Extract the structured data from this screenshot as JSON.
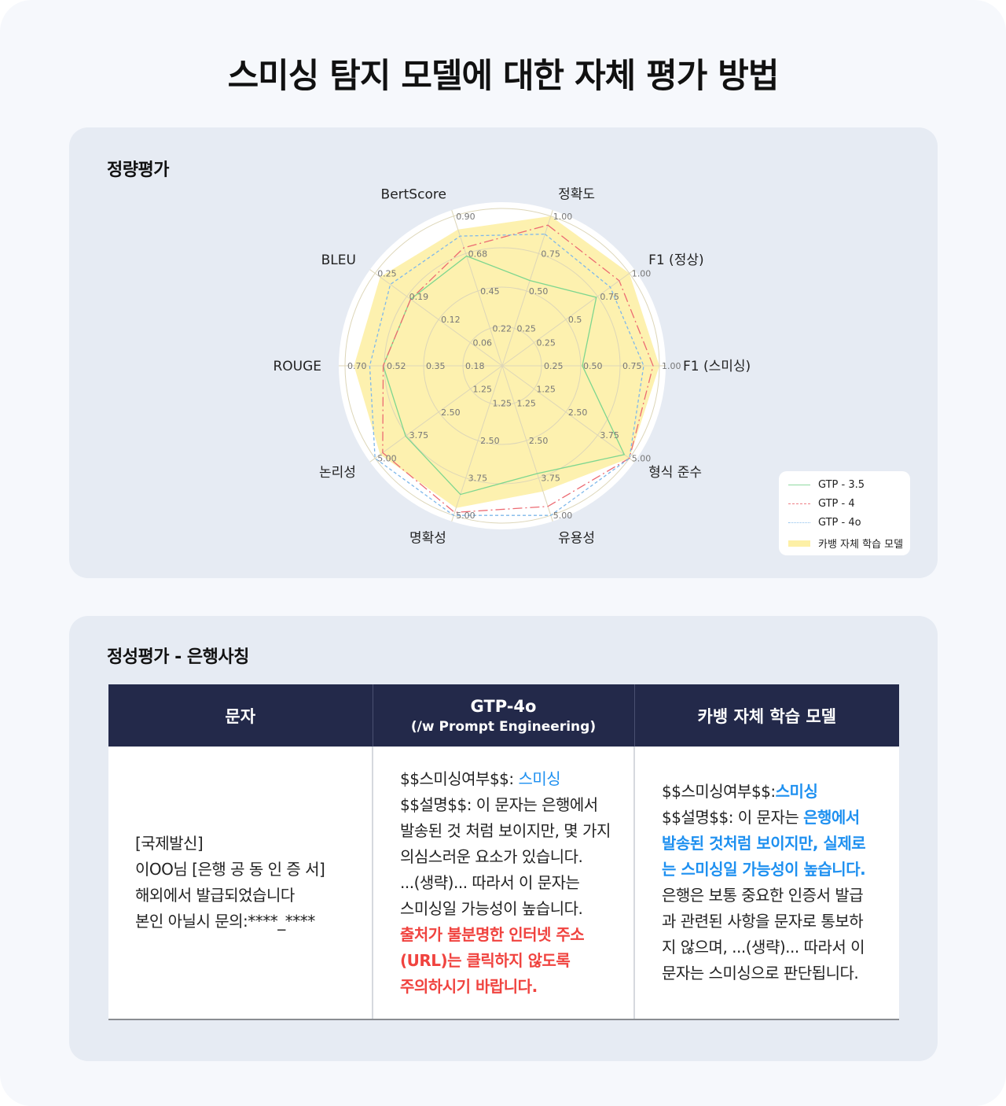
{
  "title": "스미싱 탐지 모델에 대한 자체 평가 방법",
  "quantitative": {
    "title": "정량평가",
    "legend": [
      {
        "label": "GTP - 3.5",
        "color": "#8fd9a0",
        "style": "solid"
      },
      {
        "label": "GTP - 4",
        "color": "#ef7f86",
        "style": "dashdot"
      },
      {
        "label": "GTP - 4o",
        "color": "#8cc0ec",
        "style": "dashed"
      },
      {
        "label": "카뱅 자체 학습 모델",
        "color": "#fdf0a6",
        "style": "fill"
      }
    ]
  },
  "chart_data": {
    "type": "radar",
    "axes": [
      {
        "label": "정확도",
        "ticks": [
          "0.25",
          "0.50",
          "0.75",
          "1.00"
        ],
        "max": 1.0
      },
      {
        "label": "F1 (정상)",
        "ticks": [
          "0.25",
          "0.5",
          "0.75",
          "1.00"
        ],
        "max": 1.0
      },
      {
        "label": "F1 (스미싱)",
        "ticks": [
          "0.25",
          "0.50",
          "0.75",
          "1.00"
        ],
        "max": 1.0
      },
      {
        "label": "형식 준수",
        "ticks": [
          "1.25",
          "2.50",
          "3.75",
          "5.00"
        ],
        "max": 5.0
      },
      {
        "label": "유용성",
        "ticks": [
          "1.25",
          "2.50",
          "3.75",
          "5.00"
        ],
        "max": 5.0
      },
      {
        "label": "명확성",
        "ticks": [
          "1.25",
          "2.50",
          "3.75",
          "5.00"
        ],
        "max": 5.0
      },
      {
        "label": "논리성",
        "ticks": [
          "1.25",
          "2.50",
          "3.75",
          "5.00"
        ],
        "max": 5.0
      },
      {
        "label": "ROUGE",
        "ticks": [
          "0.18",
          "0.35",
          "0.52",
          "0.70"
        ],
        "max": 0.7
      },
      {
        "label": "BLEU",
        "ticks": [
          "0.06",
          "0.12",
          "0.19",
          "0.25"
        ],
        "max": 0.25
      },
      {
        "label": "BertScore",
        "ticks": [
          "0.22",
          "0.45",
          "0.68",
          "0.90"
        ],
        "max": 0.9
      }
    ],
    "series": [
      {
        "name": "카뱅 자체 학습 모델",
        "values": [
          1.0,
          1.0,
          1.0,
          5.0,
          4.2,
          4.75,
          4.8,
          0.66,
          0.24,
          0.82
        ]
      },
      {
        "name": "GTP - 3.5",
        "values": [
          0.57,
          0.74,
          0.51,
          4.8,
          3.6,
          4.3,
          3.8,
          0.53,
          0.18,
          0.66
        ]
      },
      {
        "name": "GTP - 4",
        "values": [
          0.94,
          0.92,
          0.96,
          5.0,
          4.7,
          4.9,
          4.7,
          0.53,
          0.18,
          0.71
        ]
      },
      {
        "name": "GTP - 4o",
        "values": [
          0.88,
          0.85,
          0.9,
          5.0,
          5.0,
          5.0,
          5.0,
          0.59,
          0.22,
          0.78
        ]
      }
    ],
    "legend_position": "bottom-right",
    "grid": true
  },
  "qualitative": {
    "title": "정성평가 - 은행사칭",
    "headers": [
      {
        "main": "문자"
      },
      {
        "main": "GTP-4o",
        "sub": "(/w Prompt Engineering)"
      },
      {
        "main": "카뱅 자체 학습 모델"
      }
    ],
    "cells": [
      [
        [
          {
            "text": "[국제발신]"
          }
        ],
        [
          {
            "text": "이OO님 [은행 공 동 인 증 서]"
          }
        ],
        [
          {
            "text": "해외에서 발급되었습니다"
          }
        ],
        [
          {
            "text": "본인 아닐시 문의:****_****"
          }
        ]
      ],
      [
        [
          {
            "text": "$$스미싱여부$$: "
          },
          {
            "text": "스미싱",
            "color": "#1e90f0"
          }
        ],
        [
          {
            "text": "$$설명$$: 이 문자는 은행에서"
          }
        ],
        [
          {
            "text": "발송된 것 처럼 보이지만, 몇 가지"
          }
        ],
        [
          {
            "text": "의심스러운 요소가 있습니다."
          }
        ],
        [
          {
            "text": "...(생략)... 따라서 이 문자는"
          }
        ],
        [
          {
            "text": "스미싱일 가능성이 높습니다."
          }
        ],
        [
          {
            "text": "출처가 불분명한 인터넷 주소",
            "color": "#f0433f",
            "bold": true
          }
        ],
        [
          {
            "text": "(URL)는 클릭하지 않도록",
            "color": "#f0433f",
            "bold": true
          }
        ],
        [
          {
            "text": "주의하시기 바랍니다.",
            "color": "#f0433f",
            "bold": true
          }
        ]
      ],
      [
        [
          {
            "text": "$$스미싱여부$$:"
          },
          {
            "text": "스미싱",
            "color": "#1e90f0",
            "bold": true
          }
        ],
        [
          {
            "text": "$$설명$$: 이 문자는 "
          },
          {
            "text": "은행에서",
            "color": "#1e90f0",
            "bold": true
          }
        ],
        [
          {
            "text": "발송된 것처럼 보이지만, 실제로",
            "color": "#1e90f0",
            "bold": true
          }
        ],
        [
          {
            "text": "는 스미싱일 가능성이 높습니다.",
            "color": "#1e90f0",
            "bold": true
          }
        ],
        [
          {
            "text": "은행은 보통 중요한 인증서 발급"
          }
        ],
        [
          {
            "text": "과 관련된 사항을 문자로 통보하"
          }
        ],
        [
          {
            "text": "지 않으며, ...(생략)... 따라서 이"
          }
        ],
        [
          {
            "text": "문자는 스미싱으로 판단됩니다."
          }
        ]
      ]
    ]
  }
}
